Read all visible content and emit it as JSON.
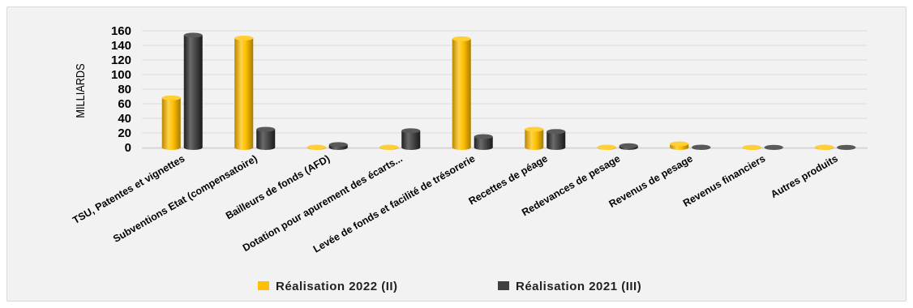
{
  "chart_data": {
    "type": "bar",
    "title": "",
    "xlabel": "",
    "ylabel": "MILLIARDS",
    "ylim": [
      0,
      160
    ],
    "yticks": [
      0,
      20,
      40,
      60,
      80,
      100,
      120,
      140,
      160
    ],
    "grid": true,
    "legend_position": "bottom",
    "categories": [
      "TSU, Patentes et vignettes",
      "Subventions Etat (compensatoire)",
      "Bailleurs de fonds (AFD)",
      "Dotation pour apurement des écarts...",
      "Levée de fonds et facilité de trésorerie",
      "Recettes de péage",
      "Redevances de pesage",
      "Revenus de pesage",
      "Revenus financiers",
      "Autres produits"
    ],
    "series": [
      {
        "name": "Réalisation 2022 (II)",
        "color": "#FFC000",
        "values": [
          68,
          150,
          0.5,
          0.5,
          149,
          25,
          0.5,
          5,
          0.3,
          0.5
        ]
      },
      {
        "name": "Réalisation 2021 (III)",
        "color": "#404040",
        "values": [
          154,
          25,
          4,
          23,
          15,
          22,
          2.5,
          0.5,
          0.3,
          0.3
        ]
      }
    ]
  }
}
